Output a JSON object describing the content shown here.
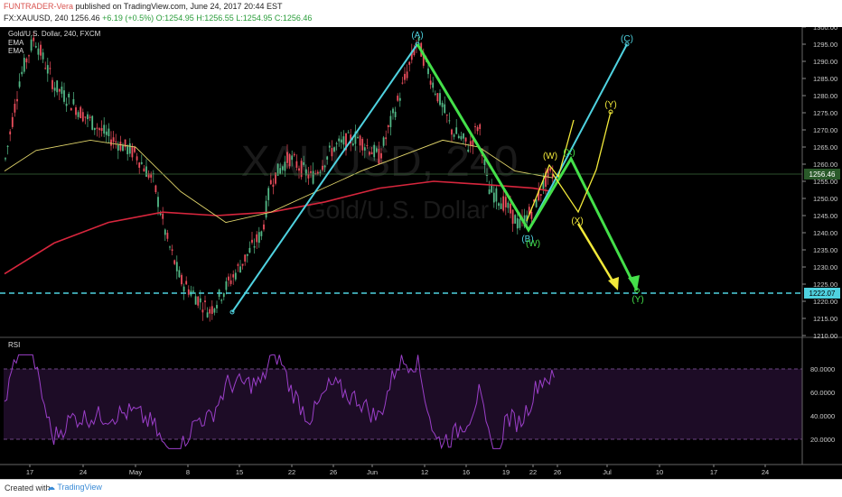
{
  "header": {
    "author": "FUNTRADER-Vera",
    "published": "published on TradingView.com, June 24, 2017 20:44 EST",
    "symbol": "FX:XAUUSD, 240",
    "last": "1256.46",
    "change": "+6.19 (+0.5%)",
    "open": "O:1254.95",
    "high": "H:1256.55",
    "low": "L:1254.95",
    "close": "C:1256.46"
  },
  "legend": {
    "instrument": "Gold/U.S. Dollar, 240, FXCM",
    "ema1": "EMA",
    "ema2": "EMA",
    "rsi": "RSI"
  },
  "watermark": {
    "symbol": "XAUUSD, 240",
    "name": "Gold/U.S. Dollar"
  },
  "price_axis": {
    "ticks": [
      "1300.00",
      "1295.00",
      "1290.00",
      "1285.00",
      "1280.00",
      "1275.00",
      "1270.00",
      "1265.00",
      "1260.00",
      "1255.00",
      "1250.00",
      "1245.00",
      "1240.00",
      "1235.00",
      "1230.00",
      "1225.00",
      "1220.00",
      "1215.00",
      "1210.00"
    ],
    "last_price": "1256.46",
    "support_price": "1222.07"
  },
  "rsi_axis": {
    "ticks": [
      "80.0000",
      "60.0000",
      "40.0000",
      "20.0000"
    ]
  },
  "time_axis": {
    "ticks": [
      "17",
      "24",
      "May",
      "8",
      "15",
      "22",
      "26",
      "Jun",
      "12",
      "16",
      "19",
      "22",
      "26",
      "Jul",
      "10",
      "17",
      "24"
    ]
  },
  "wave_labels": {
    "a": "(A)",
    "b": "(B)",
    "c": "(C)",
    "w_top": "(W)",
    "w_bottom": "(W)",
    "x_green": "(X)",
    "x_yellow": "(X)",
    "y_yellow": "(Y)",
    "y_green": "(Y)"
  },
  "colors": {
    "up": "#53b987",
    "down": "#eb4d5c",
    "ema_slow": "#d7263d",
    "ema_fast": "#e0d46a",
    "wave_cyan": "#4fd2e0",
    "wave_green": "#44e04a",
    "wave_yellow": "#f2e93a",
    "rsi": "#9b3fc9"
  },
  "footer": {
    "created": "Created with",
    "logo": "TradingView"
  }
}
